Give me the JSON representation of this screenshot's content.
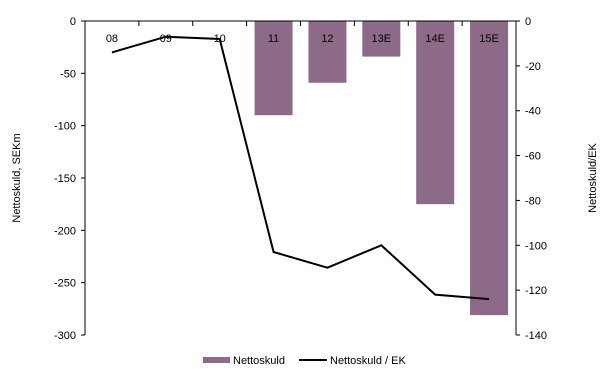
{
  "chart_data": {
    "type": "bar",
    "categories": [
      "08",
      "09",
      "10",
      "11",
      "12",
      "13E",
      "14E",
      "15E"
    ],
    "series": [
      {
        "name": "Nettoskuld",
        "type": "bar",
        "axis": "left",
        "values": [
          0,
          0,
          0,
          -90,
          -59,
          -34,
          -175,
          -281
        ],
        "color": "#8d6a87"
      },
      {
        "name": "Nettoskuld / EK",
        "type": "line",
        "axis": "right",
        "values": [
          -14,
          -7,
          -8,
          -103,
          -110,
          -100,
          -122,
          -124
        ],
        "color": "#000000"
      }
    ],
    "ylabel": "Nettoskuld, SEKm",
    "y2label": "Nettoskuld/EK",
    "ylim": [
      -300,
      0
    ],
    "y2lim": [
      -140,
      0
    ],
    "yticks": [
      "0",
      "-50",
      "-100",
      "-150",
      "-200",
      "-250",
      "-300"
    ],
    "y2ticks": [
      "0",
      "-20",
      "-40",
      "-60",
      "-80",
      "-100",
      "-120",
      "-140"
    ],
    "grid": false,
    "legend": "bottom"
  }
}
